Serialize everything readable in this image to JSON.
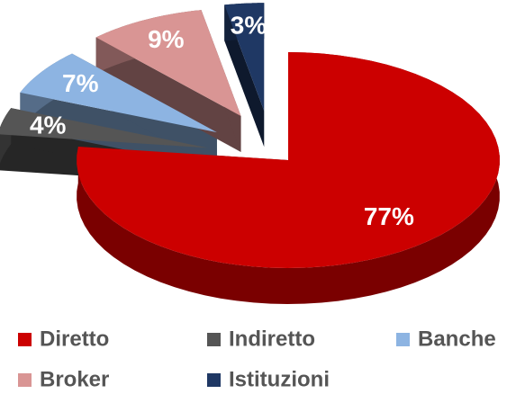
{
  "chart_data": {
    "type": "pie",
    "categories": [
      "Diretto",
      "Indiretto",
      "Banche",
      "Broker",
      "Istituzioni"
    ],
    "values": [
      77,
      4,
      7,
      9,
      3
    ],
    "value_labels": [
      "77%",
      "4%",
      "7%",
      "9%",
      "3%"
    ],
    "colors": [
      "#cc0000",
      "#555555",
      "#8db4e2",
      "#d99594",
      "#1f3864"
    ],
    "legend": "bottom"
  }
}
